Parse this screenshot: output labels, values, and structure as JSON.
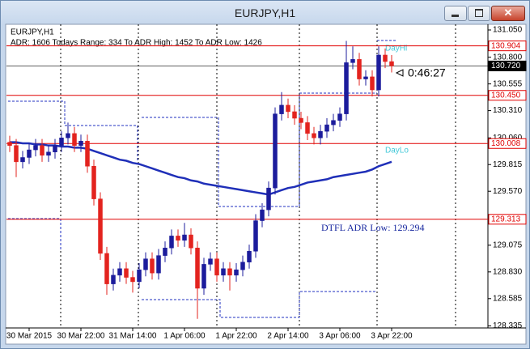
{
  "window_title": "EURJPY,H1",
  "chart_data": {
    "type": "candlestick",
    "labels": {
      "symbol": "EURJPY,H1",
      "adr_info": "ADR: 1606  Todays Range: 334  To ADR High: 1452  To ADR Low: 1426",
      "timer": "0:46:27",
      "day_high": "DayHi",
      "day_low": "DayLo",
      "adr_low": "DTFL ADR Low: 129.294"
    },
    "categories": [
      null,
      null,
      null,
      "30 Mar 2015",
      null,
      null,
      null,
      null,
      null,
      null,
      null,
      "30 Mar 22:00",
      null,
      null,
      null,
      null,
      null,
      null,
      null,
      "31 Mar 14:00",
      null,
      null,
      null,
      null,
      null,
      null,
      null,
      "1 Apr 06:00",
      null,
      null,
      null,
      null,
      null,
      null,
      null,
      "1 Apr 22:00",
      null,
      null,
      null,
      null,
      null,
      null,
      null,
      "2 Apr 14:00",
      null,
      null,
      null,
      null,
      null,
      null,
      null,
      "3 Apr 06:00",
      null,
      null,
      null,
      null,
      null,
      null,
      null,
      "3 Apr 22:00"
    ],
    "open": [
      130.02,
      129.99,
      129.84,
      129.88,
      129.95,
      129.99,
      129.9,
      129.93,
      129.99,
      130.06,
      130.1,
      129.99,
      130.03,
      129.8,
      129.5,
      129.0,
      128.72,
      128.8,
      128.86,
      128.78,
      128.74,
      128.85,
      128.95,
      128.82,
      128.98,
      129.05,
      129.16,
      129.12,
      129.17,
      129.05,
      128.68,
      128.9,
      128.95,
      128.8,
      128.86,
      128.8,
      128.85,
      128.92,
      129.02,
      129.3,
      129.4,
      129.6,
      130.28,
      130.36,
      130.3,
      130.24,
      130.2,
      130.1,
      130.06,
      130.12,
      130.18,
      130.22,
      130.28,
      130.75,
      130.78,
      130.6,
      130.62,
      130.5,
      130.82,
      130.76
    ],
    "high": [
      130.08,
      130.05,
      129.94,
      130.01,
      130.05,
      130.05,
      129.99,
      130.05,
      130.12,
      130.2,
      130.16,
      130.09,
      130.09,
      129.86,
      129.56,
      129.06,
      128.86,
      128.92,
      128.92,
      128.84,
      128.91,
      129.01,
      129.01,
      129.04,
      129.11,
      129.22,
      129.22,
      129.28,
      129.23,
      129.11,
      128.96,
      129.01,
      129.01,
      128.92,
      128.92,
      128.91,
      128.98,
      129.08,
      129.36,
      129.46,
      129.66,
      130.34,
      130.48,
      130.42,
      130.36,
      130.3,
      130.26,
      130.16,
      130.18,
      130.24,
      130.28,
      130.34,
      130.95,
      130.9,
      130.84,
      130.68,
      130.68,
      130.9,
      130.88,
      130.82
    ],
    "low": [
      129.93,
      129.7,
      129.78,
      129.82,
      129.89,
      129.84,
      129.84,
      129.87,
      129.93,
      130.0,
      129.93,
      129.93,
      129.74,
      129.44,
      128.94,
      128.62,
      128.66,
      128.74,
      128.72,
      128.64,
      128.68,
      128.79,
      128.76,
      128.76,
      128.92,
      128.99,
      129.06,
      129.06,
      128.99,
      128.4,
      128.62,
      128.84,
      128.74,
      128.74,
      128.66,
      128.74,
      128.79,
      128.86,
      128.96,
      129.24,
      129.34,
      129.54,
      130.22,
      130.24,
      130.18,
      130.14,
      130.04,
      130.0,
      130.0,
      130.06,
      130.12,
      130.16,
      130.22,
      130.69,
      130.54,
      130.54,
      130.44,
      130.44,
      130.7,
      130.66
    ],
    "close": [
      129.99,
      129.84,
      129.88,
      129.95,
      129.99,
      129.9,
      129.93,
      129.99,
      130.06,
      130.1,
      129.99,
      130.03,
      129.8,
      129.5,
      129.0,
      128.72,
      128.8,
      128.86,
      128.78,
      128.74,
      128.85,
      128.95,
      128.82,
      128.98,
      129.05,
      129.16,
      129.12,
      129.17,
      129.05,
      128.68,
      128.9,
      128.95,
      128.8,
      128.86,
      128.8,
      128.85,
      128.92,
      129.02,
      129.3,
      129.4,
      129.6,
      130.28,
      130.36,
      130.3,
      130.24,
      130.2,
      130.1,
      130.06,
      130.12,
      130.18,
      130.22,
      130.28,
      130.75,
      130.78,
      130.6,
      130.62,
      130.5,
      130.82,
      130.76,
      130.72
    ],
    "up_color": "#1c1c9c",
    "down_color": "#e3231e",
    "ma": {
      "color": "#1f2fb8",
      "values": [
        130.02,
        130.02,
        130.01,
        130.01,
        130.0,
        130.0,
        129.99,
        129.99,
        129.98,
        129.98,
        129.97,
        129.97,
        129.96,
        129.94,
        129.92,
        129.9,
        129.88,
        129.86,
        129.85,
        129.83,
        129.82,
        129.8,
        129.78,
        129.76,
        129.74,
        129.72,
        129.7,
        129.69,
        129.67,
        129.66,
        129.64,
        129.63,
        129.62,
        129.61,
        129.6,
        129.59,
        129.58,
        129.57,
        129.56,
        129.55,
        129.54,
        129.56,
        129.58,
        129.6,
        129.61,
        129.63,
        129.65,
        129.66,
        129.67,
        129.68,
        129.7,
        129.71,
        129.72,
        129.73,
        129.74,
        129.75,
        129.77,
        129.8,
        129.82,
        129.84
      ]
    },
    "levels": [
      {
        "value": 130.904,
        "label": "130.904",
        "color": "#e00000"
      },
      {
        "value": 130.72,
        "label": "130.720",
        "color": "#000000"
      },
      {
        "value": 130.45,
        "label": "130.450",
        "color": "#e00000"
      },
      {
        "value": 130.008,
        "label": "130.008",
        "color": "#e00000"
      },
      {
        "value": 129.313,
        "label": "129.313",
        "color": "#e00000"
      }
    ],
    "ylim": [
      128.316,
      131.102
    ],
    "yticks": [
      {
        "value": 131.05,
        "label": "131.050"
      },
      {
        "value": 130.8,
        "label": "130.800"
      },
      130.555,
      {
        "value": 130.31,
        "label": "130.310"
      },
      {
        "value": 130.06,
        "label": "130.060"
      },
      129.815,
      {
        "value": 129.57,
        "label": "129.570"
      },
      129.075,
      {
        "value": 128.83,
        "label": "128.830"
      },
      128.585,
      128.335
    ]
  }
}
